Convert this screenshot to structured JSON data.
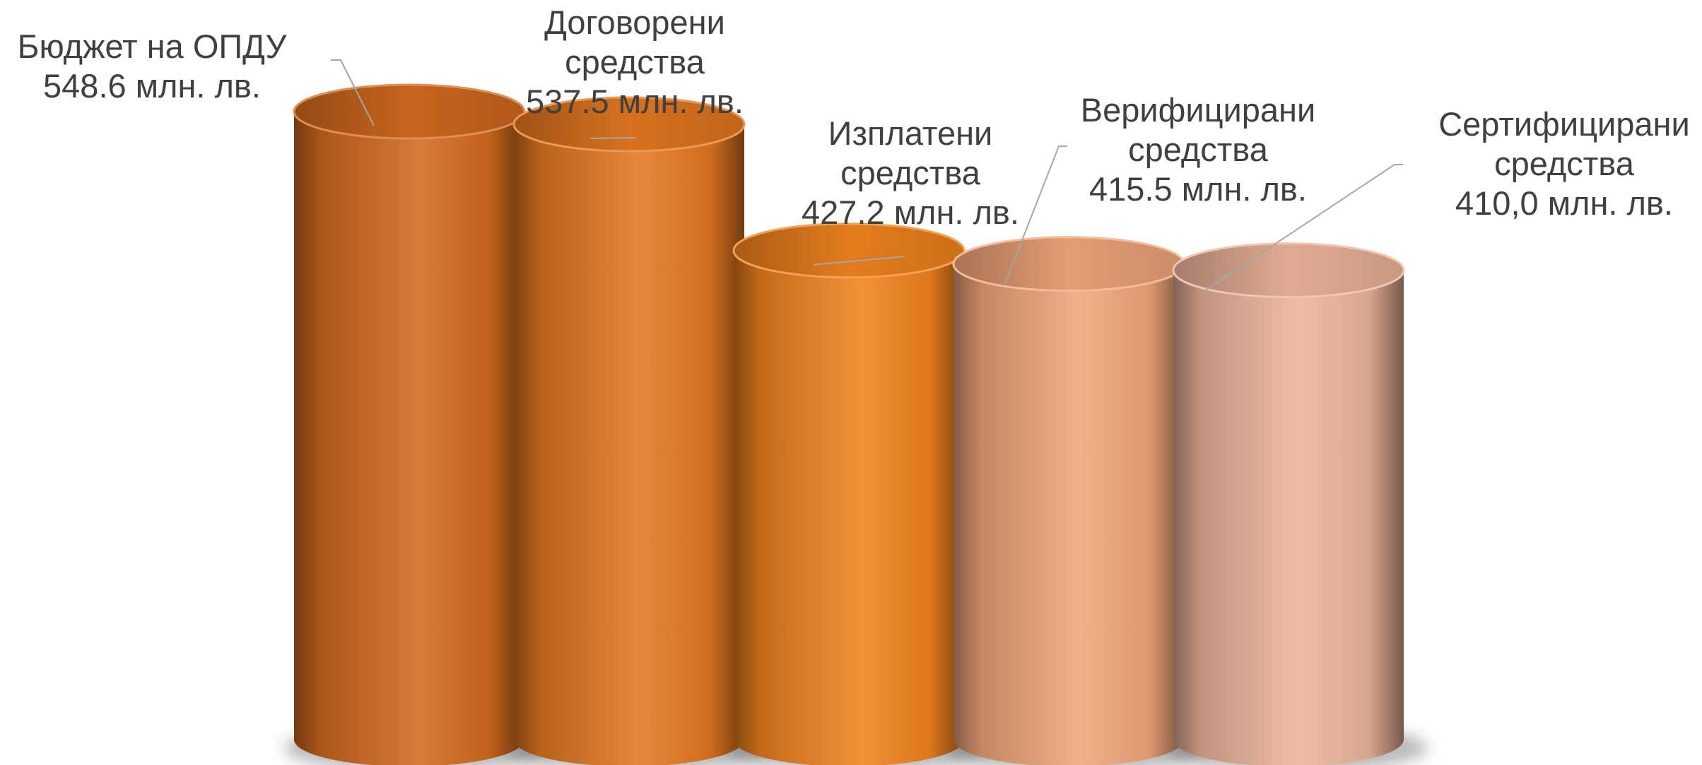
{
  "chart_data": {
    "type": "bar",
    "style": "3d-cylinder",
    "title": "",
    "xlabel": "",
    "ylabel": "",
    "unit": "млн. лв.",
    "grid": false,
    "legend": "none",
    "categories": [
      "Бюджет на ОПДУ",
      "Договорени средства",
      "Изплатени средства",
      "Верифицирани средства",
      "Сертифицирани средства"
    ],
    "values": [
      548.6,
      537.5,
      427.2,
      415.5,
      410.0
    ],
    "data_labels": [
      {
        "lines": [
          "Бюджет на ОПДУ",
          "548.6 млн. лв."
        ]
      },
      {
        "lines": [
          "Договорени",
          "средства",
          "537.5 млн. лв."
        ]
      },
      {
        "lines": [
          "Изплатени",
          "средства",
          "427.2 млн. лв."
        ]
      },
      {
        "lines": [
          "Верифицирани",
          "средства",
          "415.5 млн. лв."
        ]
      },
      {
        "lines": [
          "Сертифицирани",
          "средства",
          "410,0 млн. лв."
        ]
      }
    ],
    "colors": [
      "#D2691E",
      "#E37720",
      "#F0821E",
      "#F0A57A",
      "#ECB49A"
    ]
  }
}
